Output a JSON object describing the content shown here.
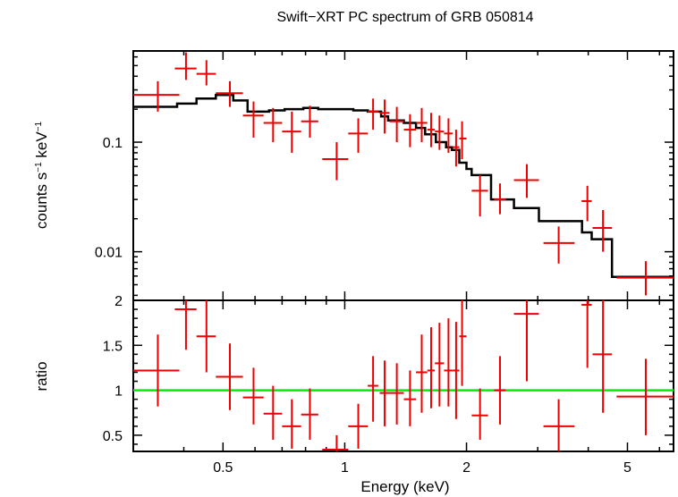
{
  "title": "Swift−XRT PC spectrum of GRB 050814",
  "chart_data": [
    {
      "type": "scatter",
      "panel": "spectrum",
      "ylabel_main": "counts s",
      "ylabel_sup1": "−1",
      "ylabel_mid": " keV",
      "ylabel_sup2": "−1",
      "xscale": "log",
      "yscale": "log",
      "xlim": [
        0.3,
        6.5
      ],
      "ylim": [
        0.0036,
        0.68
      ],
      "yticks": [
        {
          "value": 0.01,
          "label": "0.01"
        },
        {
          "value": 0.1,
          "label": "0.1"
        }
      ],
      "data_color": "#ee0000",
      "model_color": "#000000",
      "data_points": [
        {
          "x": 0.345,
          "xlo": 0.3,
          "xhi": 0.39,
          "y": 0.27,
          "ylo": 0.19,
          "yhi": 0.36
        },
        {
          "x": 0.405,
          "xlo": 0.38,
          "xhi": 0.43,
          "y": 0.47,
          "ylo": 0.37,
          "yhi": 0.66
        },
        {
          "x": 0.455,
          "xlo": 0.43,
          "xhi": 0.48,
          "y": 0.42,
          "ylo": 0.33,
          "yhi": 0.56
        },
        {
          "x": 0.52,
          "xlo": 0.48,
          "xhi": 0.56,
          "y": 0.28,
          "ylo": 0.21,
          "yhi": 0.36
        },
        {
          "x": 0.595,
          "xlo": 0.56,
          "xhi": 0.63,
          "y": 0.175,
          "ylo": 0.11,
          "yhi": 0.235
        },
        {
          "x": 0.665,
          "xlo": 0.63,
          "xhi": 0.7,
          "y": 0.15,
          "ylo": 0.1,
          "yhi": 0.205
        },
        {
          "x": 0.74,
          "xlo": 0.7,
          "xhi": 0.78,
          "y": 0.125,
          "ylo": 0.08,
          "yhi": 0.19
        },
        {
          "x": 0.82,
          "xlo": 0.78,
          "xhi": 0.86,
          "y": 0.155,
          "ylo": 0.11,
          "yhi": 0.215
        },
        {
          "x": 0.955,
          "xlo": 0.88,
          "xhi": 1.02,
          "y": 0.07,
          "ylo": 0.045,
          "yhi": 0.1
        },
        {
          "x": 1.08,
          "xlo": 1.02,
          "xhi": 1.14,
          "y": 0.12,
          "ylo": 0.08,
          "yhi": 0.165
        },
        {
          "x": 1.175,
          "xlo": 1.14,
          "xhi": 1.21,
          "y": 0.19,
          "ylo": 0.13,
          "yhi": 0.25
        },
        {
          "x": 1.255,
          "xlo": 1.22,
          "xhi": 1.29,
          "y": 0.185,
          "ylo": 0.12,
          "yhi": 0.245
        },
        {
          "x": 1.345,
          "xlo": 1.29,
          "xhi": 1.4,
          "y": 0.155,
          "ylo": 0.1,
          "yhi": 0.21
        },
        {
          "x": 1.45,
          "xlo": 1.4,
          "xhi": 1.5,
          "y": 0.13,
          "ylo": 0.09,
          "yhi": 0.18
        },
        {
          "x": 1.55,
          "xlo": 1.5,
          "xhi": 1.6,
          "y": 0.15,
          "ylo": 0.1,
          "yhi": 0.205
        },
        {
          "x": 1.635,
          "xlo": 1.6,
          "xhi": 1.67,
          "y": 0.13,
          "ylo": 0.09,
          "yhi": 0.185
        },
        {
          "x": 1.715,
          "xlo": 1.67,
          "xhi": 1.76,
          "y": 0.125,
          "ylo": 0.085,
          "yhi": 0.175
        },
        {
          "x": 1.805,
          "xlo": 1.76,
          "xhi": 1.85,
          "y": 0.12,
          "ylo": 0.08,
          "yhi": 0.165
        },
        {
          "x": 1.885,
          "xlo": 1.85,
          "xhi": 1.92,
          "y": 0.09,
          "ylo": 0.06,
          "yhi": 0.13
        },
        {
          "x": 1.95,
          "xlo": 1.92,
          "xhi": 2.0,
          "y": 0.108,
          "ylo": 0.07,
          "yhi": 0.155
        },
        {
          "x": 2.16,
          "xlo": 2.06,
          "xhi": 2.26,
          "y": 0.036,
          "ylo": 0.021,
          "yhi": 0.05
        },
        {
          "x": 2.42,
          "xlo": 2.34,
          "xhi": 2.5,
          "y": 0.03,
          "ylo": 0.022,
          "yhi": 0.042
        },
        {
          "x": 2.82,
          "xlo": 2.62,
          "xhi": 3.02,
          "y": 0.045,
          "ylo": 0.031,
          "yhi": 0.063
        },
        {
          "x": 3.38,
          "xlo": 3.1,
          "xhi": 3.7,
          "y": 0.012,
          "ylo": 0.0078,
          "yhi": 0.017
        },
        {
          "x": 3.98,
          "xlo": 3.85,
          "xhi": 4.08,
          "y": 0.029,
          "ylo": 0.019,
          "yhi": 0.04
        },
        {
          "x": 4.35,
          "xlo": 4.1,
          "xhi": 4.58,
          "y": 0.0165,
          "ylo": 0.01,
          "yhi": 0.024
        },
        {
          "x": 5.55,
          "xlo": 4.7,
          "xhi": 6.5,
          "y": 0.0058,
          "ylo": 0.004,
          "yhi": 0.0082
        }
      ],
      "model_step": [
        [
          0.3,
          0.21
        ],
        [
          0.385,
          0.225
        ],
        [
          0.43,
          0.25
        ],
        [
          0.48,
          0.27
        ],
        [
          0.53,
          0.24
        ],
        [
          0.575,
          0.19
        ],
        [
          0.65,
          0.195
        ],
        [
          0.71,
          0.2
        ],
        [
          0.79,
          0.205
        ],
        [
          0.86,
          0.2
        ],
        [
          0.99,
          0.2
        ],
        [
          1.05,
          0.195
        ],
        [
          1.14,
          0.19
        ],
        [
          1.23,
          0.172
        ],
        [
          1.28,
          0.158
        ],
        [
          1.4,
          0.15
        ],
        [
          1.5,
          0.135
        ],
        [
          1.58,
          0.118
        ],
        [
          1.68,
          0.1
        ],
        [
          1.78,
          0.09
        ],
        [
          1.84,
          0.085
        ],
        [
          1.92,
          0.065
        ],
        [
          2.0,
          0.057
        ],
        [
          2.06,
          0.05
        ],
        [
          2.3,
          0.03
        ],
        [
          2.62,
          0.025
        ],
        [
          3.02,
          0.019
        ],
        [
          3.86,
          0.015
        ],
        [
          4.08,
          0.013
        ],
        [
          4.58,
          0.0059
        ]
      ],
      "model_end_x": 6.5
    },
    {
      "type": "scatter",
      "panel": "ratio",
      "ylabel": "ratio",
      "xlabel": "Energy (keV)",
      "xscale": "log",
      "xlim": [
        0.3,
        6.5
      ],
      "ylim": [
        0.32,
        2.0
      ],
      "xticks": [
        {
          "value": 0.5,
          "label": "0.5"
        },
        {
          "value": 1,
          "label": "1"
        },
        {
          "value": 2,
          "label": "2"
        },
        {
          "value": 5,
          "label": "5"
        }
      ],
      "yticks": [
        {
          "value": 0.5,
          "label": "0.5"
        },
        {
          "value": 1,
          "label": "1"
        },
        {
          "value": 1.5,
          "label": "1.5"
        },
        {
          "value": 2,
          "label": "2"
        }
      ],
      "reference_line": 1.0,
      "reference_color": "#00ee00",
      "data_color": "#ee0000",
      "data_points": [
        {
          "x": 0.345,
          "xlo": 0.3,
          "xhi": 0.39,
          "y": 1.22,
          "ylo": 0.82,
          "yhi": 1.62
        },
        {
          "x": 0.405,
          "xlo": 0.38,
          "xhi": 0.43,
          "y": 1.9,
          "ylo": 1.45,
          "yhi": 2.0
        },
        {
          "x": 0.455,
          "xlo": 0.43,
          "xhi": 0.48,
          "y": 1.6,
          "ylo": 1.2,
          "yhi": 2.0
        },
        {
          "x": 0.52,
          "xlo": 0.48,
          "xhi": 0.56,
          "y": 1.15,
          "ylo": 0.78,
          "yhi": 1.52
        },
        {
          "x": 0.595,
          "xlo": 0.56,
          "xhi": 0.63,
          "y": 0.92,
          "ylo": 0.62,
          "yhi": 1.25
        },
        {
          "x": 0.665,
          "xlo": 0.63,
          "xhi": 0.7,
          "y": 0.74,
          "ylo": 0.45,
          "yhi": 1.05
        },
        {
          "x": 0.74,
          "xlo": 0.7,
          "xhi": 0.78,
          "y": 0.6,
          "ylo": 0.35,
          "yhi": 0.9
        },
        {
          "x": 0.82,
          "xlo": 0.78,
          "xhi": 0.86,
          "y": 0.73,
          "ylo": 0.45,
          "yhi": 1.02
        },
        {
          "x": 0.955,
          "xlo": 0.88,
          "xhi": 1.02,
          "y": 0.34,
          "ylo": 0.32,
          "yhi": 0.5
        },
        {
          "x": 1.08,
          "xlo": 1.02,
          "xhi": 1.14,
          "y": 0.6,
          "ylo": 0.35,
          "yhi": 0.85
        },
        {
          "x": 1.175,
          "xlo": 1.14,
          "xhi": 1.21,
          "y": 1.05,
          "ylo": 0.65,
          "yhi": 1.38
        },
        {
          "x": 1.255,
          "xlo": 1.22,
          "xhi": 1.29,
          "y": 0.97,
          "ylo": 0.6,
          "yhi": 1.33
        },
        {
          "x": 1.345,
          "xlo": 1.29,
          "xhi": 1.4,
          "y": 0.97,
          "ylo": 0.62,
          "yhi": 1.3
        },
        {
          "x": 1.45,
          "xlo": 1.4,
          "xhi": 1.5,
          "y": 0.9,
          "ylo": 0.6,
          "yhi": 1.22
        },
        {
          "x": 1.55,
          "xlo": 1.5,
          "xhi": 1.6,
          "y": 1.2,
          "ylo": 0.75,
          "yhi": 1.62
        },
        {
          "x": 1.635,
          "xlo": 1.6,
          "xhi": 1.67,
          "y": 1.22,
          "ylo": 0.8,
          "yhi": 1.7
        },
        {
          "x": 1.715,
          "xlo": 1.67,
          "xhi": 1.76,
          "y": 1.3,
          "ylo": 0.82,
          "yhi": 1.75
        },
        {
          "x": 1.805,
          "xlo": 1.76,
          "xhi": 1.85,
          "y": 1.22,
          "ylo": 0.82,
          "yhi": 1.8
        },
        {
          "x": 1.885,
          "xlo": 1.85,
          "xhi": 1.92,
          "y": 1.22,
          "ylo": 0.68,
          "yhi": 1.76
        },
        {
          "x": 1.95,
          "xlo": 1.92,
          "xhi": 2.0,
          "y": 1.6,
          "ylo": 1.05,
          "yhi": 2.0
        },
        {
          "x": 2.16,
          "xlo": 2.06,
          "xhi": 2.26,
          "y": 0.72,
          "ylo": 0.45,
          "yhi": 1.02
        },
        {
          "x": 2.42,
          "xlo": 2.34,
          "xhi": 2.5,
          "y": 1.0,
          "ylo": 0.62,
          "yhi": 1.38
        },
        {
          "x": 2.82,
          "xlo": 2.62,
          "xhi": 3.02,
          "y": 1.85,
          "ylo": 1.1,
          "yhi": 2.0
        },
        {
          "x": 3.38,
          "xlo": 3.1,
          "xhi": 3.7,
          "y": 0.6,
          "ylo": 0.32,
          "yhi": 0.9
        },
        {
          "x": 3.98,
          "xlo": 3.85,
          "xhi": 4.08,
          "y": 1.95,
          "ylo": 1.25,
          "yhi": 2.0
        },
        {
          "x": 4.35,
          "xlo": 4.1,
          "xhi": 4.58,
          "y": 1.4,
          "ylo": 0.75,
          "yhi": 2.0
        },
        {
          "x": 5.55,
          "xlo": 4.7,
          "xhi": 6.5,
          "y": 0.93,
          "ylo": 0.5,
          "yhi": 1.35
        }
      ]
    }
  ]
}
